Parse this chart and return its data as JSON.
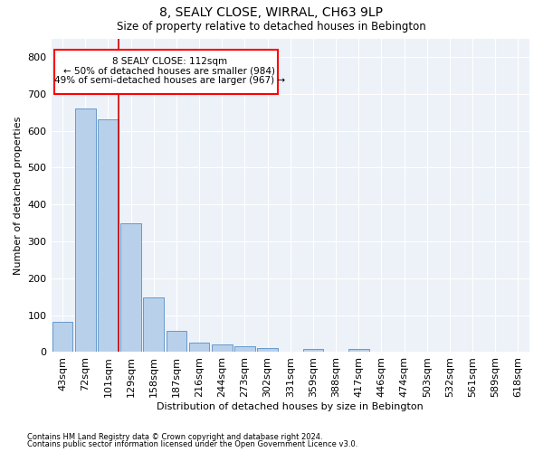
{
  "title1": "8, SEALY CLOSE, WIRRAL, CH63 9LP",
  "title2": "Size of property relative to detached houses in Bebington",
  "xlabel": "Distribution of detached houses by size in Bebington",
  "ylabel": "Number of detached properties",
  "footnote1": "Contains HM Land Registry data © Crown copyright and database right 2024.",
  "footnote2": "Contains public sector information licensed under the Open Government Licence v3.0.",
  "annotation_line1": "8 SEALY CLOSE: 112sqm",
  "annotation_line2": "← 50% of detached houses are smaller (984)",
  "annotation_line3": "49% of semi-detached houses are larger (967) →",
  "bar_color": "#b8d0ea",
  "bar_edge_color": "#6699cc",
  "red_line_color": "#cc0000",
  "background_color": "#edf2f9",
  "grid_color": "#ffffff",
  "categories": [
    "43sqm",
    "72sqm",
    "101sqm",
    "129sqm",
    "158sqm",
    "187sqm",
    "216sqm",
    "244sqm",
    "273sqm",
    "302sqm",
    "331sqm",
    "359sqm",
    "388sqm",
    "417sqm",
    "446sqm",
    "474sqm",
    "503sqm",
    "532sqm",
    "561sqm",
    "589sqm",
    "618sqm"
  ],
  "values": [
    83,
    660,
    630,
    348,
    148,
    58,
    25,
    20,
    15,
    10,
    0,
    8,
    0,
    8,
    0,
    0,
    0,
    0,
    0,
    0,
    0
  ],
  "red_line_x": 2.45,
  "ylim": [
    0,
    850
  ],
  "yticks": [
    0,
    100,
    200,
    300,
    400,
    500,
    600,
    700,
    800
  ]
}
